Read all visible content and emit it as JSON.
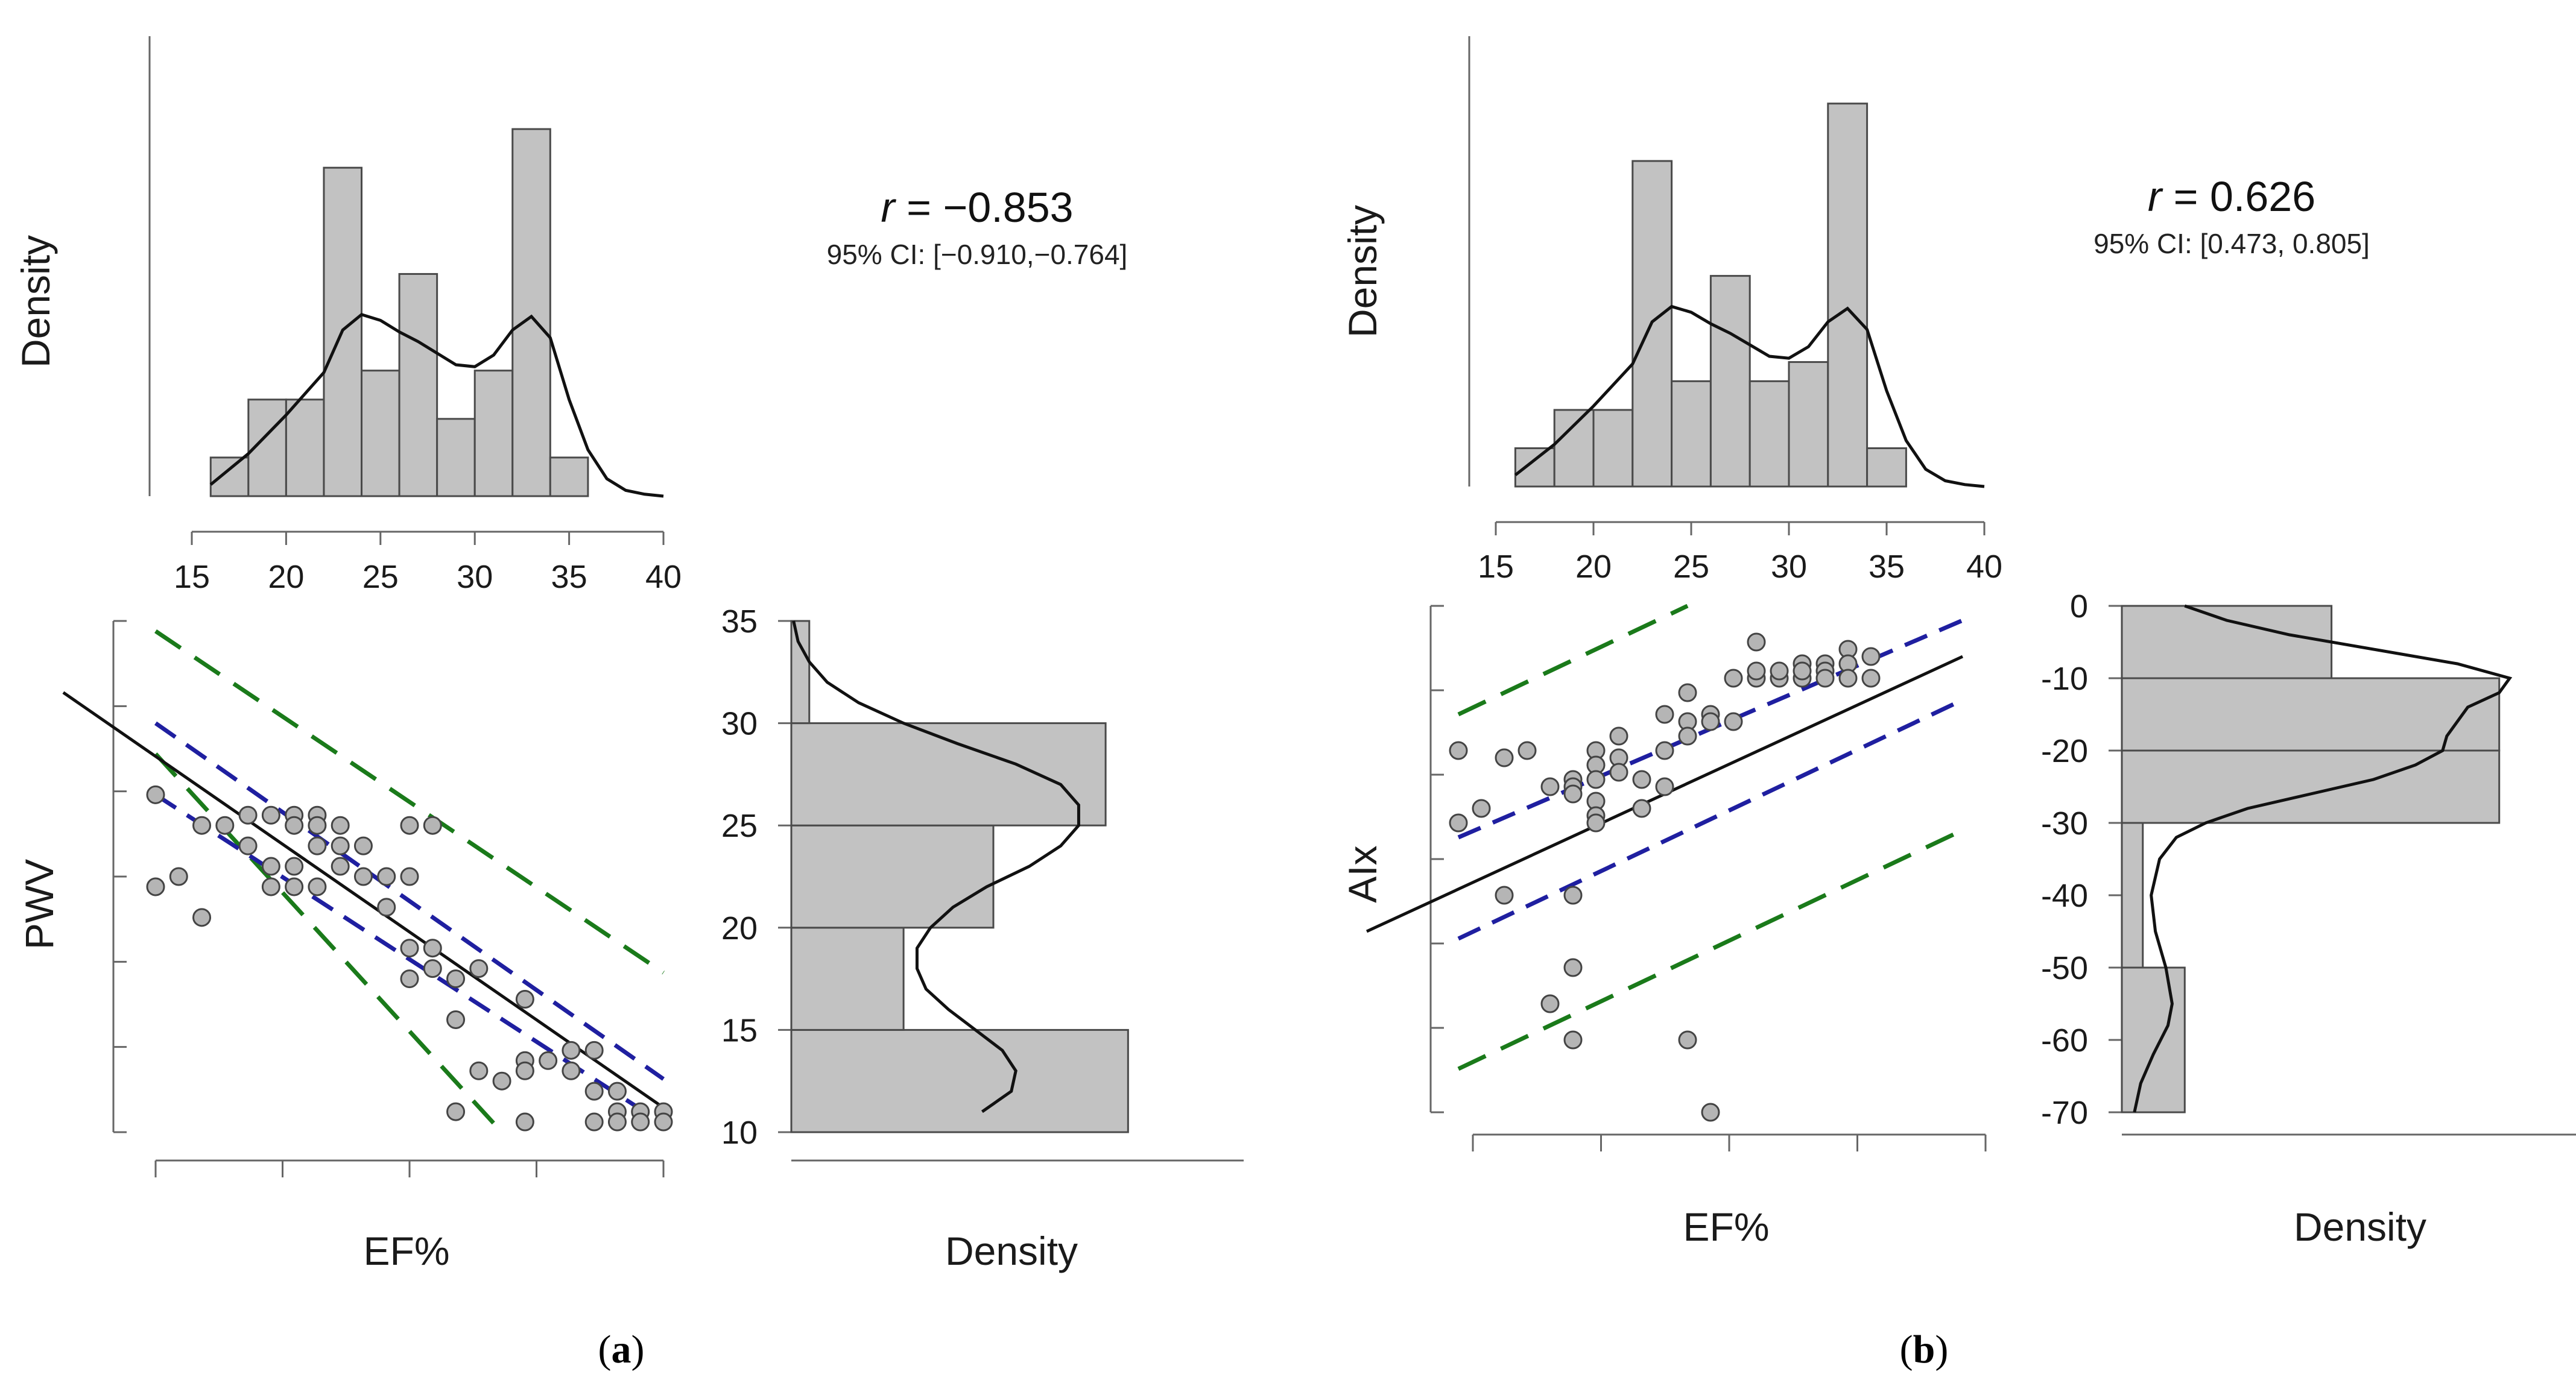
{
  "chart_data": [
    {
      "panel_label": "a",
      "type": "scatter",
      "correlation": {
        "r_prefix": "r",
        "r_text": " = −0.853",
        "ci_text": "95% CI: [−0.910,−0.764]"
      },
      "top_hist": {
        "type": "bar",
        "ylabel": "Density",
        "xlim": [
          15,
          40
        ],
        "xticks": [
          15,
          20,
          25,
          30,
          35,
          40
        ],
        "bins": [
          [
            16,
            18,
            0.02
          ],
          [
            18,
            20,
            0.05
          ],
          [
            20,
            22,
            0.05
          ],
          [
            22,
            24,
            0.17
          ],
          [
            24,
            26,
            0.065
          ],
          [
            26,
            28,
            0.115
          ],
          [
            28,
            30,
            0.04
          ],
          [
            30,
            32,
            0.065
          ],
          [
            32,
            34,
            0.19
          ],
          [
            34,
            36,
            0.02
          ]
        ],
        "ylim": [
          0,
          0.21
        ],
        "kde": [
          [
            16,
            0.006
          ],
          [
            18,
            0.022
          ],
          [
            20,
            0.042
          ],
          [
            22,
            0.064
          ],
          [
            23,
            0.086
          ],
          [
            24,
            0.094
          ],
          [
            25,
            0.091
          ],
          [
            26,
            0.085
          ],
          [
            27,
            0.08
          ],
          [
            28,
            0.074
          ],
          [
            29,
            0.068
          ],
          [
            30,
            0.067
          ],
          [
            31,
            0.073
          ],
          [
            32,
            0.086
          ],
          [
            33,
            0.093
          ],
          [
            34,
            0.082
          ],
          [
            35,
            0.05
          ],
          [
            36,
            0.024
          ],
          [
            37,
            0.009
          ],
          [
            38,
            0.003
          ],
          [
            39,
            0.001
          ],
          [
            40,
            0.0
          ]
        ]
      },
      "scatter": {
        "xlabel": "EF%",
        "ylabel": "PWV",
        "xlim": [
          15,
          40
        ],
        "ylim": [
          10,
          35
        ],
        "points": [
          [
            19,
            26.5
          ],
          [
            19,
            22
          ],
          [
            20,
            22.5
          ],
          [
            21,
            25
          ],
          [
            21,
            20.5
          ],
          [
            22,
            25
          ],
          [
            23,
            25.5
          ],
          [
            23,
            24
          ],
          [
            24,
            25.5
          ],
          [
            24,
            23
          ],
          [
            24,
            22
          ],
          [
            25,
            25.5
          ],
          [
            25,
            25
          ],
          [
            25,
            23
          ],
          [
            25,
            22
          ],
          [
            26,
            25.5
          ],
          [
            26,
            25
          ],
          [
            26,
            24
          ],
          [
            26,
            22
          ],
          [
            27,
            25
          ],
          [
            27,
            24
          ],
          [
            27,
            23
          ],
          [
            28,
            24
          ],
          [
            28,
            22.5
          ],
          [
            29,
            22.5
          ],
          [
            29,
            21
          ],
          [
            30,
            25
          ],
          [
            30,
            22.5
          ],
          [
            30,
            19
          ],
          [
            30,
            17.5
          ],
          [
            31,
            25
          ],
          [
            31,
            19
          ],
          [
            31,
            18
          ],
          [
            32,
            17.5
          ],
          [
            32,
            15.5
          ],
          [
            33,
            18
          ],
          [
            33,
            13
          ],
          [
            34,
            12.5
          ],
          [
            35,
            16.5
          ],
          [
            35,
            13.5
          ],
          [
            35,
            13
          ],
          [
            36,
            13.5
          ],
          [
            37,
            14
          ],
          [
            37,
            13
          ],
          [
            38,
            12
          ],
          [
            38,
            10.5
          ],
          [
            38,
            14
          ],
          [
            39,
            11
          ],
          [
            39,
            12
          ],
          [
            39,
            10.5
          ],
          [
            40,
            11
          ],
          [
            40,
            10.5
          ],
          [
            41,
            11
          ],
          [
            41,
            10.5
          ],
          [
            32,
            11
          ],
          [
            35,
            10.5
          ]
        ],
        "fit": [
          [
            15,
            31.5
          ],
          [
            41,
            11.2
          ]
        ],
        "ci_upper": [
          [
            19,
            30
          ],
          [
            41,
            12.6
          ]
        ],
        "ci_lower": [
          [
            19,
            26.5
          ],
          [
            41,
            10.4
          ]
        ],
        "pi_upper": [
          [
            19,
            34.5
          ],
          [
            41,
            17.8
          ]
        ],
        "pi_lower": [
          [
            19,
            28.5
          ],
          [
            34,
            10
          ]
        ]
      },
      "side_hist": {
        "xlabel": "Density",
        "ylim": [
          10,
          35
        ],
        "yticks": [
          10,
          15,
          20,
          25,
          30,
          35
        ],
        "bins": [
          [
            10,
            15,
            0.15
          ],
          [
            15,
            20,
            0.05
          ],
          [
            20,
            25,
            0.09
          ],
          [
            25,
            30,
            0.14
          ],
          [
            30,
            35,
            0.008
          ]
        ],
        "xlim": [
          0,
          0.18
        ],
        "kde": [
          [
            11,
            0.085
          ],
          [
            12,
            0.098
          ],
          [
            13,
            0.1
          ],
          [
            14,
            0.094
          ],
          [
            15,
            0.082
          ],
          [
            16,
            0.07
          ],
          [
            17,
            0.06
          ],
          [
            18,
            0.056
          ],
          [
            19,
            0.056
          ],
          [
            20,
            0.062
          ],
          [
            21,
            0.072
          ],
          [
            22,
            0.087
          ],
          [
            23,
            0.106
          ],
          [
            24,
            0.12
          ],
          [
            25,
            0.128
          ],
          [
            26,
            0.128
          ],
          [
            27,
            0.12
          ],
          [
            28,
            0.1
          ],
          [
            29,
            0.074
          ],
          [
            30,
            0.05
          ],
          [
            31,
            0.03
          ],
          [
            32,
            0.016
          ],
          [
            33,
            0.008
          ],
          [
            34,
            0.003
          ],
          [
            35,
            0.001
          ]
        ]
      }
    },
    {
      "panel_label": "b",
      "type": "scatter",
      "correlation": {
        "r_prefix": "r",
        "r_text": " = 0.626",
        "ci_text": "95% CI: [0.473, 0.805]"
      },
      "top_hist": {
        "type": "bar",
        "ylabel": "Density",
        "xlim": [
          15,
          40
        ],
        "xticks": [
          15,
          20,
          25,
          30,
          35,
          40
        ],
        "bins": [
          [
            16,
            18,
            0.02
          ],
          [
            18,
            20,
            0.04
          ],
          [
            20,
            22,
            0.04
          ],
          [
            22,
            24,
            0.17
          ],
          [
            24,
            26,
            0.055
          ],
          [
            26,
            28,
            0.11
          ],
          [
            28,
            30,
            0.055
          ],
          [
            30,
            32,
            0.065
          ],
          [
            32,
            34,
            0.2
          ],
          [
            34,
            36,
            0.02
          ]
        ],
        "ylim": [
          0,
          0.21
        ],
        "kde": [
          [
            16,
            0.006
          ],
          [
            18,
            0.022
          ],
          [
            20,
            0.042
          ],
          [
            22,
            0.064
          ],
          [
            23,
            0.086
          ],
          [
            24,
            0.094
          ],
          [
            25,
            0.091
          ],
          [
            26,
            0.085
          ],
          [
            27,
            0.08
          ],
          [
            28,
            0.074
          ],
          [
            29,
            0.068
          ],
          [
            30,
            0.067
          ],
          [
            31,
            0.073
          ],
          [
            32,
            0.086
          ],
          [
            33,
            0.093
          ],
          [
            34,
            0.082
          ],
          [
            35,
            0.05
          ],
          [
            36,
            0.024
          ],
          [
            37,
            0.009
          ],
          [
            38,
            0.003
          ],
          [
            39,
            0.001
          ],
          [
            40,
            0.0
          ]
        ]
      },
      "scatter": {
        "xlabel": "EF%",
        "ylabel": "AIx",
        "xlim": [
          15,
          40
        ],
        "ylim": [
          -70,
          0
        ],
        "points": [
          [
            18,
            -20
          ],
          [
            18,
            -30
          ],
          [
            19,
            -28
          ],
          [
            20,
            -21
          ],
          [
            20,
            -40
          ],
          [
            21,
            -20
          ],
          [
            22,
            -25
          ],
          [
            22,
            -55
          ],
          [
            23,
            -24
          ],
          [
            23,
            -25
          ],
          [
            23,
            -26
          ],
          [
            23,
            -40
          ],
          [
            23,
            -50
          ],
          [
            23,
            -60
          ],
          [
            24,
            -20
          ],
          [
            24,
            -22
          ],
          [
            24,
            -24
          ],
          [
            24,
            -27
          ],
          [
            24,
            -29
          ],
          [
            24,
            -30
          ],
          [
            25,
            -21
          ],
          [
            25,
            -23
          ],
          [
            25,
            -18
          ],
          [
            26,
            -28
          ],
          [
            26,
            -24
          ],
          [
            27,
            -20
          ],
          [
            27,
            -25
          ],
          [
            27,
            -15
          ],
          [
            28,
            -12
          ],
          [
            28,
            -16
          ],
          [
            28,
            -18
          ],
          [
            28,
            -60
          ],
          [
            29,
            -15
          ],
          [
            29,
            -16
          ],
          [
            29,
            -70
          ],
          [
            30,
            -10
          ],
          [
            31,
            -5
          ],
          [
            31,
            -10
          ],
          [
            32,
            -10
          ],
          [
            32,
            -9
          ],
          [
            33,
            -8
          ],
          [
            33,
            -10
          ],
          [
            33,
            -9
          ],
          [
            34,
            -8
          ],
          [
            34,
            -9
          ],
          [
            34,
            -10
          ],
          [
            35,
            -6
          ],
          [
            35,
            -8
          ],
          [
            35,
            -10
          ],
          [
            36,
            -7
          ],
          [
            36,
            -10
          ],
          [
            31,
            -9
          ],
          [
            30,
            -16
          ]
        ],
        "fit": [
          [
            14,
            -45
          ],
          [
            40,
            -7
          ]
        ],
        "ci_upper": [
          [
            18,
            -32
          ],
          [
            40,
            -2
          ]
        ],
        "ci_lower": [
          [
            18,
            -46
          ],
          [
            40,
            -13
          ]
        ],
        "pi_upper": [
          [
            18,
            -15
          ],
          [
            28,
            0
          ]
        ],
        "pi_lower": [
          [
            18,
            -64
          ],
          [
            40,
            -31
          ]
        ]
      },
      "side_hist": {
        "xlabel": "Density",
        "ylim": [
          -70,
          0
        ],
        "yticks": [
          0,
          -10,
          -20,
          -30,
          -40,
          -50,
          -60,
          -70
        ],
        "bins": [
          [
            -10,
            0,
            0.01
          ],
          [
            -20,
            -10,
            0.018
          ],
          [
            -30,
            -20,
            0.018
          ],
          [
            -50,
            -30,
            0.001
          ],
          [
            -70,
            -50,
            0.003
          ]
        ],
        "xlim": [
          0,
          0.021
        ],
        "kde": [
          [
            0,
            0.003
          ],
          [
            -2,
            0.005
          ],
          [
            -4,
            0.008
          ],
          [
            -6,
            0.012
          ],
          [
            -8,
            0.016
          ],
          [
            -10,
            0.0185
          ],
          [
            -12,
            0.018
          ],
          [
            -14,
            0.0165
          ],
          [
            -16,
            0.016
          ],
          [
            -18,
            0.0155
          ],
          [
            -20,
            0.0153
          ],
          [
            -22,
            0.014
          ],
          [
            -24,
            0.012
          ],
          [
            -26,
            0.009
          ],
          [
            -28,
            0.006
          ],
          [
            -30,
            0.004
          ],
          [
            -32,
            0.0026
          ],
          [
            -35,
            0.0018
          ],
          [
            -40,
            0.0014
          ],
          [
            -45,
            0.0016
          ],
          [
            -50,
            0.0021
          ],
          [
            -55,
            0.0024
          ],
          [
            -58,
            0.0022
          ],
          [
            -62,
            0.0015
          ],
          [
            -66,
            0.0009
          ],
          [
            -70,
            0.0006
          ]
        ]
      }
    }
  ]
}
